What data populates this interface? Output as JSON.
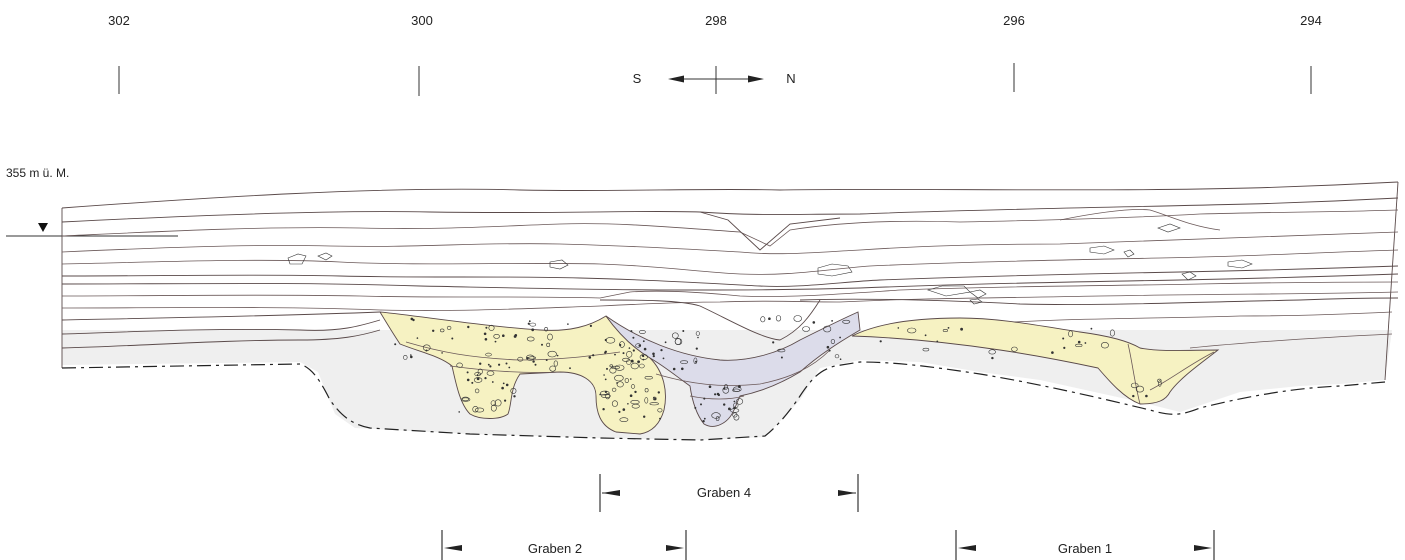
{
  "grid_labels": [
    "302",
    "300",
    "298",
    "296",
    "294"
  ],
  "orientation": {
    "south": "S",
    "north": "N"
  },
  "elevation_label": "355 m ü. M.",
  "trenches": [
    {
      "name": "Graben 4"
    },
    {
      "name": "Graben 2"
    },
    {
      "name": "Graben 1"
    }
  ],
  "colors": {
    "yellow_fill": "#f6f2c2",
    "blue_fill": "#dcdcea",
    "gray_fill": "#efefef",
    "line": "#5a4a4a"
  },
  "icons": [
    "section-marker-triangle-icon",
    "direction-arrow-icon"
  ]
}
